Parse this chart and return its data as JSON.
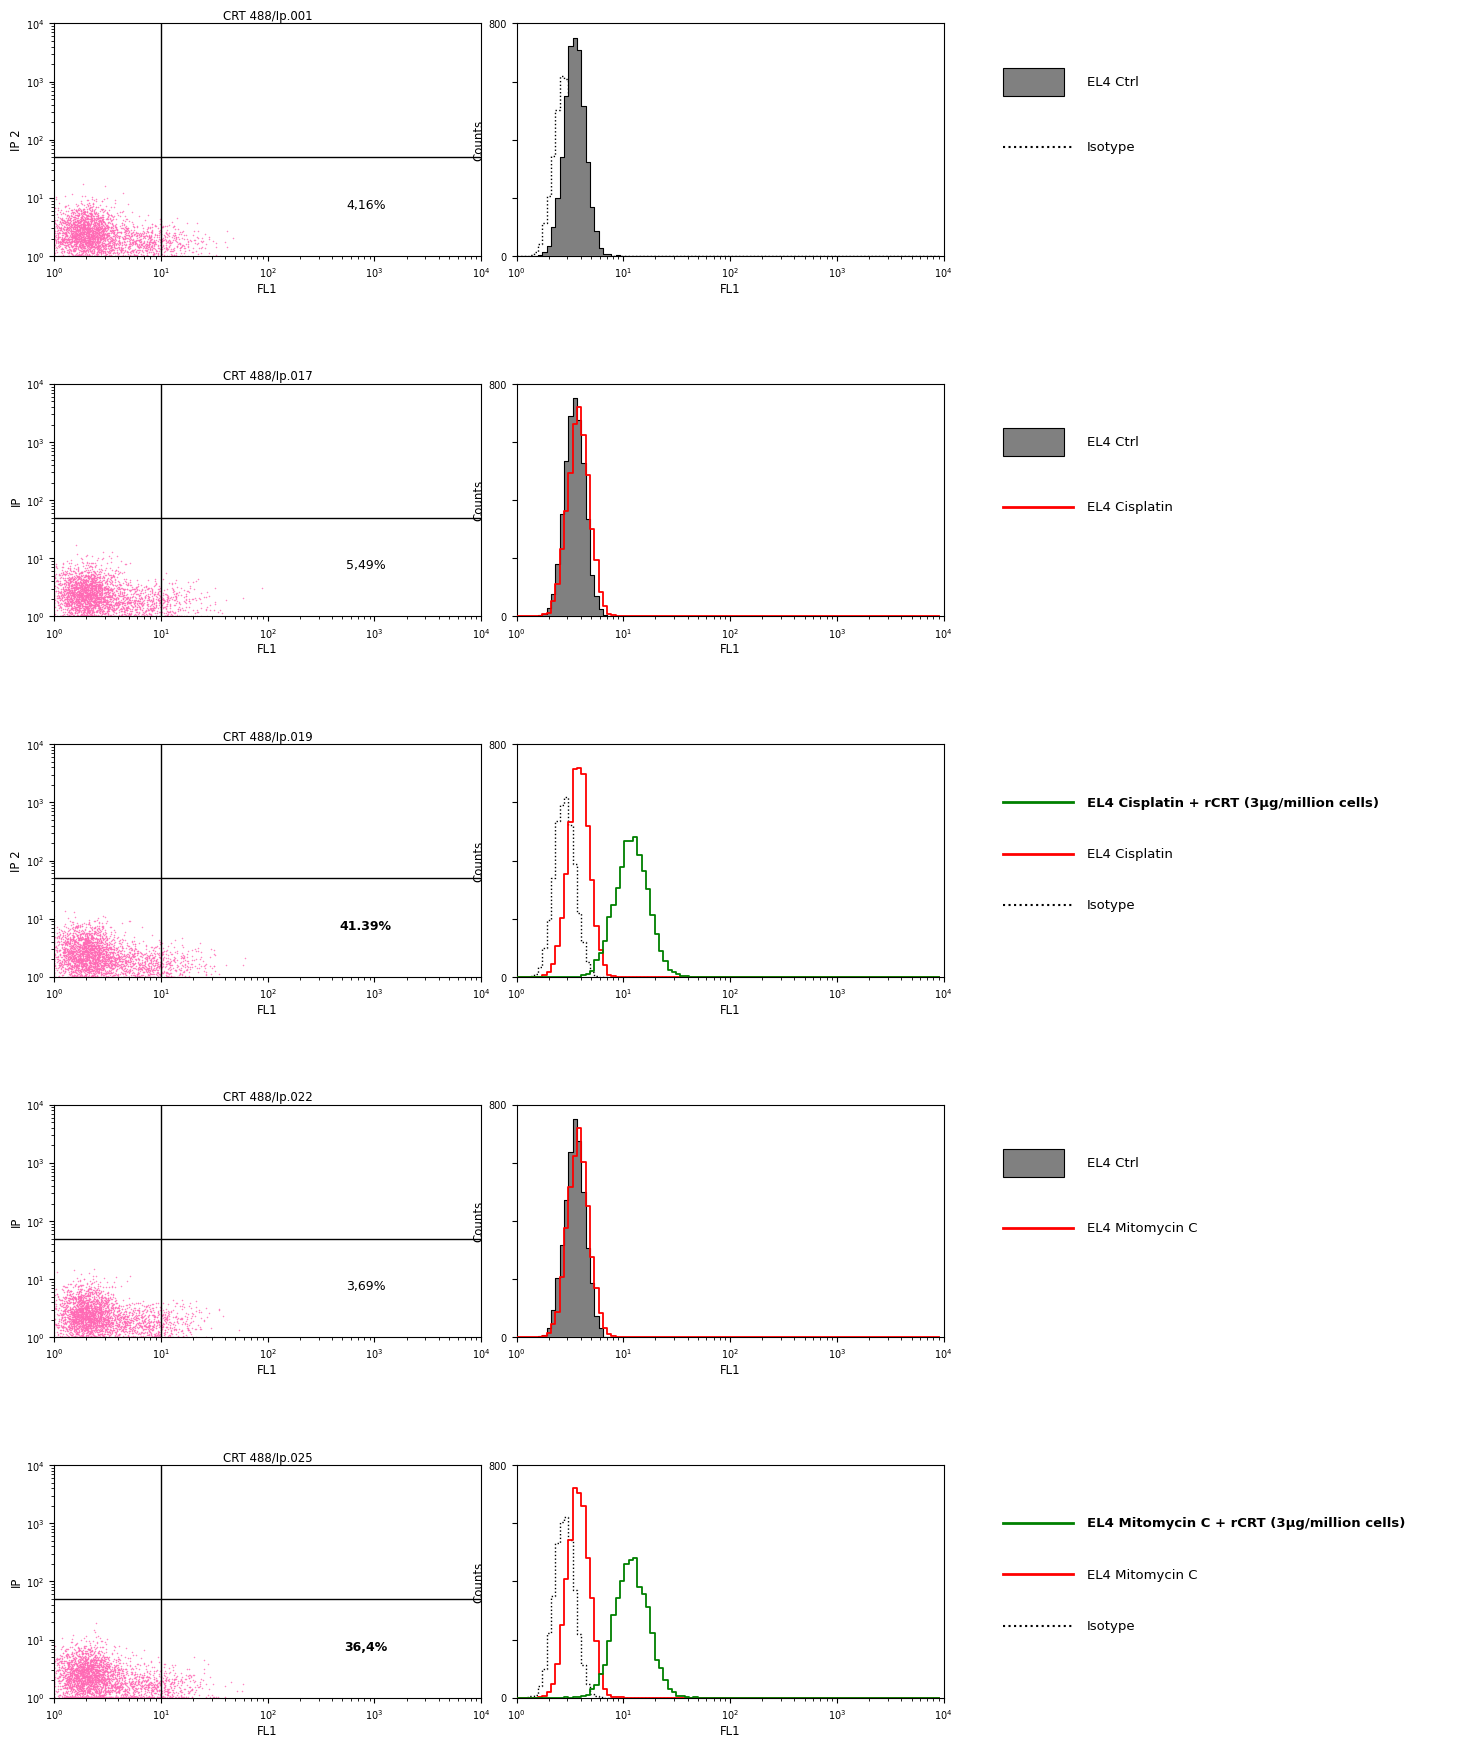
{
  "rows": [
    {
      "scatter_title": "CRT 488/Ip.001",
      "percentage": "4,16%",
      "percentage_bold": false,
      "ylabel": "IP 2",
      "histogram_legend": [
        {
          "type": "fill",
          "color": "#808080",
          "label": "EL4 Ctrl"
        },
        {
          "type": "dotted",
          "color": "black",
          "label": "Isotype"
        }
      ]
    },
    {
      "scatter_title": "CRT 488/Ip.017",
      "percentage": "5,49%",
      "percentage_bold": false,
      "ylabel": "IP",
      "histogram_legend": [
        {
          "type": "fill",
          "color": "#808080",
          "label": "EL4 Ctrl"
        },
        {
          "type": "solid",
          "color": "red",
          "label": "EL4 Cisplatin"
        }
      ]
    },
    {
      "scatter_title": "CRT 488/Ip.019",
      "percentage": "41.39%",
      "percentage_bold": true,
      "ylabel": "IP 2",
      "histogram_legend": [
        {
          "type": "solid",
          "color": "green",
          "label": "EL4 Cisplatin + rCRT (3μg/million cells)",
          "bold": true
        },
        {
          "type": "solid",
          "color": "red",
          "label": "EL4 Cisplatin"
        },
        {
          "type": "dotted",
          "color": "black",
          "label": "Isotype"
        }
      ]
    },
    {
      "scatter_title": "CRT 488/Ip.022",
      "percentage": "3,69%",
      "percentage_bold": false,
      "ylabel": "IP",
      "histogram_legend": [
        {
          "type": "fill",
          "color": "#808080",
          "label": "EL4 Ctrl"
        },
        {
          "type": "solid",
          "color": "red",
          "label": "EL4 Mitomycin C"
        }
      ]
    },
    {
      "scatter_title": "CRT 488/Ip.025",
      "percentage": "36,4%",
      "percentage_bold": true,
      "ylabel": "IP",
      "histogram_legend": [
        {
          "type": "solid",
          "color": "green",
          "label": "EL4 Mitomycin C + rCRT (3μg/million cells)",
          "bold": true
        },
        {
          "type": "solid",
          "color": "red",
          "label": "EL4 Mitomycin C"
        },
        {
          "type": "dotted",
          "color": "black",
          "label": "Isotype"
        }
      ]
    }
  ],
  "scatter_color": "#FF69B4",
  "scatter_dot_size": 1.2,
  "scatter_xlim": [
    1.0,
    10000.0
  ],
  "scatter_ylim": [
    1.0,
    10000.0
  ],
  "hist_xlim": [
    1.0,
    10000.0
  ],
  "hist_ylim": [
    0,
    800
  ],
  "gray_fill_color": "#808080",
  "background_color": "#ffffff"
}
